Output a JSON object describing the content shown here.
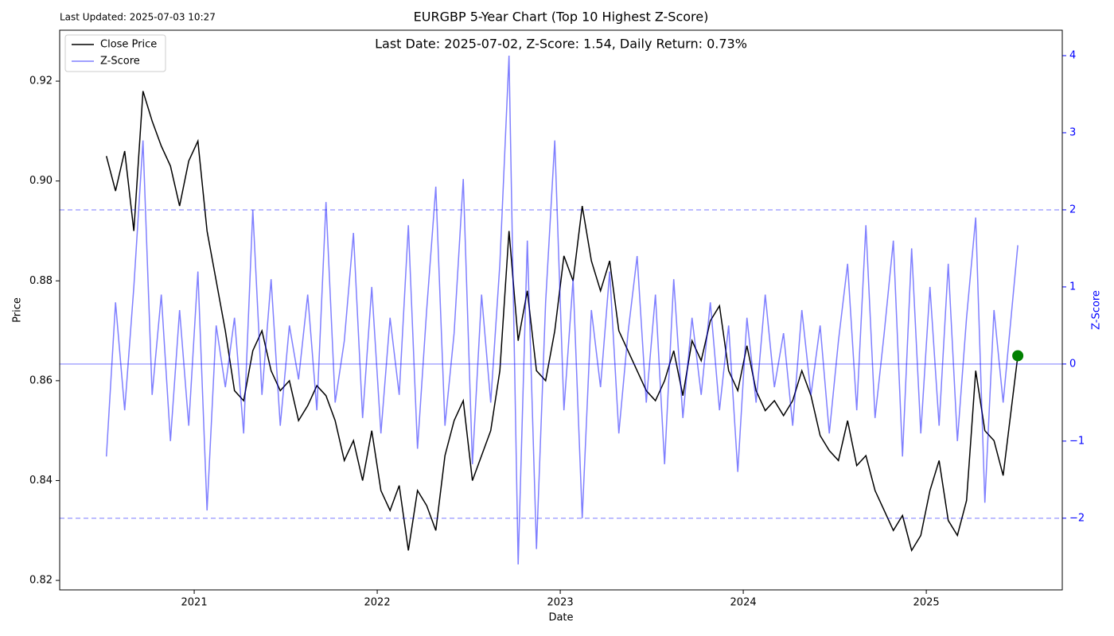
{
  "chart_data": {
    "type": "line",
    "title": "EURGBP 5-Year Chart (Top 10 Highest Z-Score)",
    "subtitle": "Last Date: 2025-07-02, Z-Score: 1.54, Daily Return: 0.73%",
    "annotation": "Last Updated: 2025-07-03 10:27",
    "xlabel": "Date",
    "ylabel": "Price",
    "y2label": "Z-Score",
    "legend": "upper left",
    "xlim": [
      2020.265,
      2025.743
    ],
    "xticks": [
      2021,
      2022,
      2023,
      2024,
      2025
    ],
    "ylim": [
      0.8181,
      0.9302
    ],
    "yticks": [
      0.82,
      0.84,
      0.86,
      0.88,
      {
        "value": 0.9,
        "label": "0.90"
      },
      0.92
    ],
    "y2lim": [
      -2.93,
      4.33
    ],
    "y2ticks": [
      {
        "value": -2,
        "label": "−2"
      },
      {
        "value": -1,
        "label": "−1"
      },
      0,
      1,
      2,
      3,
      4
    ],
    "reference_lines": [
      {
        "value": 2,
        "style": "dashed"
      },
      {
        "value": -2,
        "style": "dashed"
      },
      {
        "value": 0,
        "style": "solid"
      }
    ],
    "x": [
      2020.52,
      2020.57,
      2020.62,
      2020.67,
      2020.72,
      2020.77,
      2020.82,
      2020.87,
      2020.92,
      2020.97,
      2021.02,
      2021.07,
      2021.12,
      2021.17,
      2021.22,
      2021.27,
      2021.32,
      2021.37,
      2021.42,
      2021.47,
      2021.52,
      2021.57,
      2021.62,
      2021.67,
      2021.72,
      2021.77,
      2021.82,
      2021.87,
      2021.92,
      2021.97,
      2022.02,
      2022.07,
      2022.12,
      2022.17,
      2022.22,
      2022.27,
      2022.32,
      2022.37,
      2022.42,
      2022.47,
      2022.52,
      2022.57,
      2022.62,
      2022.67,
      2022.72,
      2022.77,
      2022.82,
      2022.87,
      2022.92,
      2022.97,
      2023.02,
      2023.07,
      2023.12,
      2023.17,
      2023.22,
      2023.27,
      2023.32,
      2023.37,
      2023.42,
      2023.47,
      2023.52,
      2023.57,
      2023.62,
      2023.67,
      2023.72,
      2023.77,
      2023.82,
      2023.87,
      2023.92,
      2023.97,
      2024.02,
      2024.07,
      2024.12,
      2024.17,
      2024.22,
      2024.27,
      2024.32,
      2024.37,
      2024.42,
      2024.47,
      2024.52,
      2024.57,
      2024.62,
      2024.67,
      2024.72,
      2024.77,
      2024.82,
      2024.87,
      2024.92,
      2024.97,
      2025.02,
      2025.07,
      2025.12,
      2025.17,
      2025.22,
      2025.27,
      2025.32,
      2025.37,
      2025.42,
      2025.5
    ],
    "series": [
      {
        "name": "Close Price",
        "color": "#000000",
        "axis": "y",
        "values": [
          0.905,
          0.898,
          0.906,
          0.89,
          0.918,
          0.912,
          0.907,
          0.903,
          0.895,
          0.904,
          0.908,
          0.89,
          0.88,
          0.87,
          0.858,
          0.856,
          0.866,
          0.87,
          0.862,
          0.858,
          0.86,
          0.852,
          0.855,
          0.859,
          0.857,
          0.852,
          0.844,
          0.848,
          0.84,
          0.85,
          0.838,
          0.834,
          0.839,
          0.826,
          0.838,
          0.835,
          0.83,
          0.845,
          0.852,
          0.856,
          0.84,
          0.845,
          0.85,
          0.862,
          0.89,
          0.868,
          0.878,
          0.862,
          0.86,
          0.87,
          0.885,
          0.88,
          0.895,
          0.884,
          0.878,
          0.884,
          0.87,
          0.866,
          0.862,
          0.858,
          0.856,
          0.86,
          0.866,
          0.857,
          0.868,
          0.864,
          0.872,
          0.875,
          0.862,
          0.858,
          0.867,
          0.858,
          0.854,
          0.856,
          0.853,
          0.856,
          0.862,
          0.857,
          0.849,
          0.846,
          0.844,
          0.852,
          0.843,
          0.845,
          0.838,
          0.834,
          0.83,
          0.833,
          0.826,
          0.829,
          0.838,
          0.844,
          0.832,
          0.829,
          0.836,
          0.862,
          0.85,
          0.848,
          0.841,
          0.865
        ]
      },
      {
        "name": "Z-Score",
        "color": "#0000ff",
        "axis": "y2",
        "values": [
          -1.2,
          0.8,
          -0.6,
          1.0,
          2.9,
          -0.4,
          0.9,
          -1.0,
          0.7,
          -0.8,
          1.2,
          -1.9,
          0.5,
          -0.3,
          0.6,
          -0.9,
          2.0,
          -0.4,
          1.1,
          -0.8,
          0.5,
          -0.2,
          0.9,
          -0.6,
          2.1,
          -0.5,
          0.3,
          1.7,
          -0.7,
          1.0,
          -0.9,
          0.6,
          -0.4,
          1.8,
          -1.1,
          0.7,
          2.3,
          -0.8,
          0.4,
          2.4,
          -1.3,
          0.9,
          -0.5,
          1.3,
          4.0,
          -2.6,
          1.6,
          -2.4,
          0.8,
          2.9,
          -0.6,
          1.1,
          -2.0,
          0.7,
          -0.3,
          1.2,
          -0.9,
          0.4,
          1.4,
          -0.5,
          0.9,
          -1.3,
          1.1,
          -0.7,
          0.6,
          -0.4,
          0.8,
          -0.6,
          0.5,
          -1.4,
          0.6,
          -0.5,
          0.9,
          -0.3,
          0.4,
          -0.8,
          0.7,
          -0.4,
          0.5,
          -0.9,
          0.3,
          1.3,
          -0.6,
          1.8,
          -0.7,
          0.4,
          1.6,
          -1.2,
          1.5,
          -0.9,
          1.0,
          -0.8,
          1.3,
          -1.0,
          0.6,
          1.9,
          -1.8,
          0.7,
          -0.5,
          1.54
        ]
      }
    ],
    "last_point_color": "#008000"
  }
}
